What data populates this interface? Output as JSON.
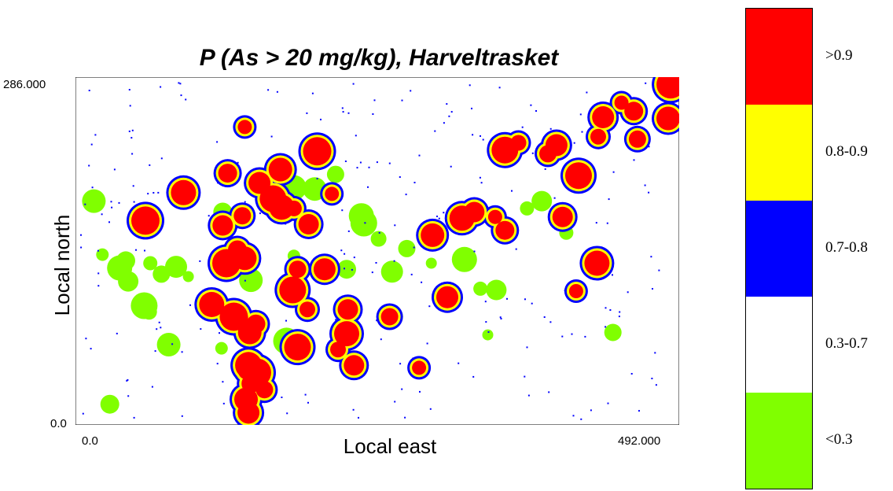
{
  "chart_data": {
    "type": "heatmap",
    "title": "P (As > 20 mg/kg),  Harveltrasket",
    "xlabel": "Local east",
    "ylabel": "Local north",
    "x_ticks": [
      "0.0",
      "492.000"
    ],
    "y_ticks": [
      "0.0",
      "286.000"
    ],
    "xlim": [
      0,
      492
    ],
    "ylim": [
      0,
      286
    ],
    "legend": {
      "placement": "right",
      "classes": [
        {
          "label": ">0.9",
          "color": "#ff0000"
        },
        {
          "label": "0.8-0.9",
          "color": "#ffff00"
        },
        {
          "label": "0.7-0.8",
          "color": "#0000ff"
        },
        {
          "label": "0.3-0.7",
          "color": "#ffffff"
        },
        {
          "label": "<0.3",
          "color": "#80ff00"
        }
      ]
    },
    "low_patches": [
      {
        "x": 448,
        "y": 257
      },
      {
        "x": 212,
        "y": 206
      },
      {
        "x": 195,
        "y": 194
      },
      {
        "x": 210,
        "y": 186
      },
      {
        "x": 120,
        "y": 175
      },
      {
        "x": 233,
        "y": 172
      },
      {
        "x": 368,
        "y": 178
      },
      {
        "x": 380,
        "y": 184
      },
      {
        "x": 235,
        "y": 166
      },
      {
        "x": 247,
        "y": 153
      },
      {
        "x": 258,
        "y": 126
      },
      {
        "x": 290,
        "y": 133
      },
      {
        "x": 270,
        "y": 145
      },
      {
        "x": 15,
        "y": 184
      },
      {
        "x": 22,
        "y": 140
      },
      {
        "x": 41,
        "y": 135
      },
      {
        "x": 36,
        "y": 129
      },
      {
        "x": 61,
        "y": 133
      },
      {
        "x": 43,
        "y": 118
      },
      {
        "x": 56,
        "y": 98
      },
      {
        "x": 60,
        "y": 93
      },
      {
        "x": 82,
        "y": 130
      },
      {
        "x": 92,
        "y": 122
      },
      {
        "x": 70,
        "y": 124
      },
      {
        "x": 143,
        "y": 119
      },
      {
        "x": 178,
        "y": 139
      },
      {
        "x": 221,
        "y": 128
      },
      {
        "x": 317,
        "y": 136
      },
      {
        "x": 330,
        "y": 112
      },
      {
        "x": 343,
        "y": 111
      },
      {
        "x": 172,
        "y": 69
      },
      {
        "x": 183,
        "y": 71
      },
      {
        "x": 258,
        "y": 89
      },
      {
        "x": 336,
        "y": 74
      },
      {
        "x": 438,
        "y": 76
      },
      {
        "x": 76,
        "y": 66
      },
      {
        "x": 119,
        "y": 63
      },
      {
        "x": 28,
        "y": 17
      },
      {
        "x": 178,
        "y": 195
      },
      {
        "x": 400,
        "y": 158
      }
    ],
    "high_zones": [
      {
        "x": 445,
        "y": 265
      },
      {
        "x": 455,
        "y": 258
      },
      {
        "x": 483,
        "y": 252
      },
      {
        "x": 485,
        "y": 280
      },
      {
        "x": 458,
        "y": 235
      },
      {
        "x": 430,
        "y": 253
      },
      {
        "x": 350,
        "y": 226
      },
      {
        "x": 361,
        "y": 232
      },
      {
        "x": 325,
        "y": 175
      },
      {
        "x": 315,
        "y": 170
      },
      {
        "x": 342,
        "y": 171
      },
      {
        "x": 350,
        "y": 160
      },
      {
        "x": 291,
        "y": 156
      },
      {
        "x": 57,
        "y": 168
      },
      {
        "x": 136,
        "y": 172
      },
      {
        "x": 150,
        "y": 199
      },
      {
        "x": 161,
        "y": 186
      },
      {
        "x": 178,
        "y": 178
      },
      {
        "x": 190,
        "y": 165
      },
      {
        "x": 168,
        "y": 179
      },
      {
        "x": 209,
        "y": 190
      },
      {
        "x": 132,
        "y": 144
      },
      {
        "x": 138,
        "y": 137
      },
      {
        "x": 123,
        "y": 133
      },
      {
        "x": 181,
        "y": 128
      },
      {
        "x": 203,
        "y": 128
      },
      {
        "x": 177,
        "y": 111
      },
      {
        "x": 189,
        "y": 95
      },
      {
        "x": 222,
        "y": 95
      },
      {
        "x": 111,
        "y": 99
      },
      {
        "x": 135,
        "y": 88
      },
      {
        "x": 147,
        "y": 83
      },
      {
        "x": 142,
        "y": 76
      },
      {
        "x": 129,
        "y": 89
      },
      {
        "x": 256,
        "y": 89
      },
      {
        "x": 303,
        "y": 105
      },
      {
        "x": 181,
        "y": 64
      },
      {
        "x": 214,
        "y": 62
      },
      {
        "x": 227,
        "y": 49
      },
      {
        "x": 221,
        "y": 75
      },
      {
        "x": 280,
        "y": 47
      },
      {
        "x": 143,
        "y": 34
      },
      {
        "x": 139,
        "y": 21
      },
      {
        "x": 148,
        "y": 43
      },
      {
        "x": 154,
        "y": 29
      },
      {
        "x": 141,
        "y": 10
      },
      {
        "x": 141,
        "y": 49
      },
      {
        "x": 139,
        "y": 44
      },
      {
        "x": 120,
        "y": 164
      },
      {
        "x": 88,
        "y": 191
      },
      {
        "x": 138,
        "y": 245
      },
      {
        "x": 124,
        "y": 207
      },
      {
        "x": 167,
        "y": 210
      },
      {
        "x": 197,
        "y": 225
      },
      {
        "x": 385,
        "y": 223
      },
      {
        "x": 392,
        "y": 230
      },
      {
        "x": 410,
        "y": 205
      },
      {
        "x": 426,
        "y": 237
      },
      {
        "x": 397,
        "y": 171
      },
      {
        "x": 425,
        "y": 133
      },
      {
        "x": 408,
        "y": 110
      }
    ]
  }
}
